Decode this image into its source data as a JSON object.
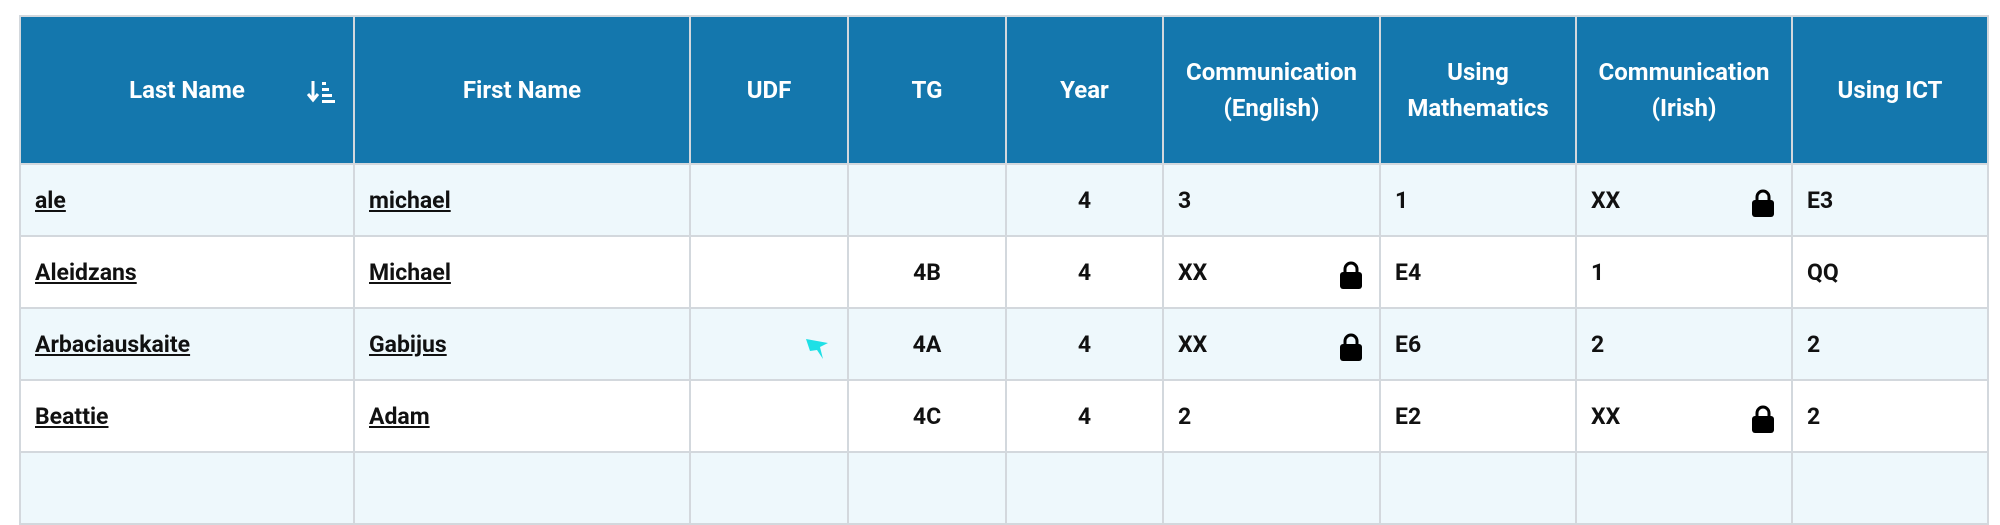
{
  "table": {
    "headers": [
      "Last Name",
      "First Name",
      "UDF",
      "TG",
      "Year",
      "Communication (English)",
      "Using Mathematics",
      "Communication (Irish)",
      "Using ICT"
    ],
    "rows": [
      [
        "ale",
        "michael",
        null,
        null,
        "4",
        "3",
        "1",
        "XX",
        "E3"
      ],
      [
        "Aleidzans",
        "Michael",
        null,
        "4B",
        "4",
        "XX",
        "E4",
        "1",
        "QQ"
      ],
      [
        "Arbaciauskaite",
        "Gabijus",
        null,
        "4A",
        "4",
        "XX",
        "E6",
        "2",
        "2"
      ],
      [
        "Beattie",
        "Adam",
        null,
        "4C",
        "4",
        "2",
        "E2",
        "XX",
        "2"
      ]
    ]
  }
}
